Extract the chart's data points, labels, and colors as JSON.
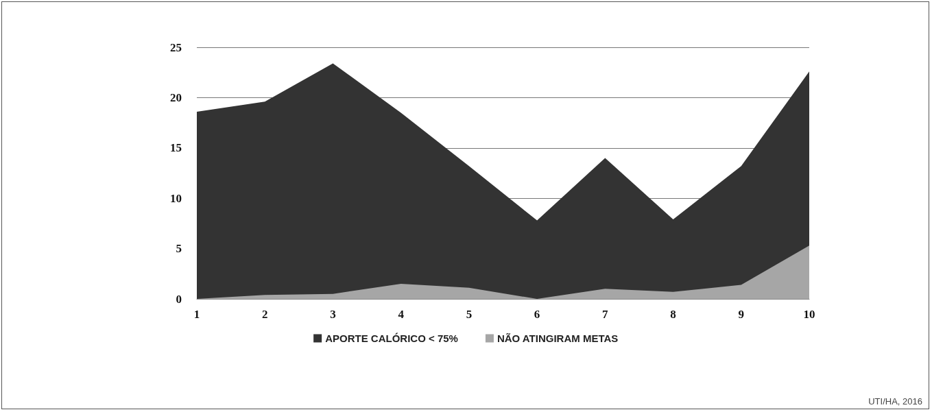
{
  "chart_data": {
    "type": "area",
    "categories": [
      "1",
      "2",
      "3",
      "4",
      "5",
      "6",
      "7",
      "8",
      "9",
      "10"
    ],
    "series": [
      {
        "name": "APORTE CALÓRICO < 75%",
        "color": "#333333",
        "values": [
          18.6,
          19.6,
          23.4,
          18.5,
          13.2,
          7.8,
          14.0,
          7.9,
          13.2,
          22.6
        ]
      },
      {
        "name": "NÃO ATINGIRAM METAS",
        "color": "#a6a6a6",
        "values": [
          0,
          0.4,
          0.5,
          1.5,
          1.1,
          0,
          1.0,
          0.7,
          1.4,
          5.3
        ]
      }
    ],
    "ylim": [
      0,
      25
    ],
    "yticks": [
      0,
      5,
      10,
      15,
      20,
      25
    ],
    "grid": "y",
    "legend": "bottom",
    "annotations": [
      "UTI/HA, 2016"
    ]
  }
}
